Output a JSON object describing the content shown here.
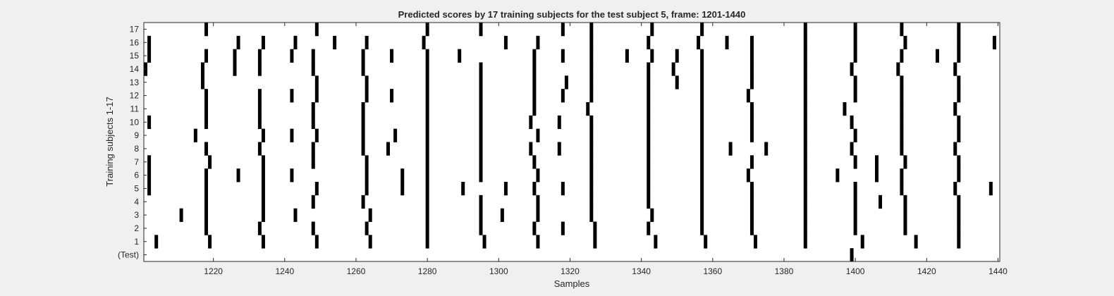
{
  "chart_data": {
    "type": "raster",
    "title": "Predicted scores by 17 training subjects for the test subject 5, frame: 1201-1440",
    "xlabel": "Samples",
    "ylabel": "Training subjects 1-17",
    "xlim": [
      1201,
      1440
    ],
    "xticks": [
      1220,
      1240,
      1260,
      1280,
      1300,
      1320,
      1340,
      1360,
      1380,
      1400,
      1420,
      1440
    ],
    "grid": false,
    "background_color": "#ffffff",
    "mark_color": "#000000",
    "rows": [
      {
        "label": "17",
        "x": [
          1218,
          1249,
          1280,
          1295,
          1318,
          1326,
          1343,
          1357,
          1386,
          1400,
          1413,
          1429
        ]
      },
      {
        "label": "16",
        "x": [
          1202,
          1227,
          1234,
          1243,
          1254,
          1263,
          1279,
          1302,
          1311,
          1326,
          1342,
          1356,
          1364,
          1371,
          1386,
          1400,
          1414,
          1429,
          1439
        ]
      },
      {
        "label": "15",
        "x": [
          1202,
          1218,
          1226,
          1233,
          1242,
          1248,
          1262,
          1270,
          1280,
          1289,
          1310,
          1318,
          1326,
          1336,
          1343,
          1350,
          1357,
          1371,
          1386,
          1400,
          1413,
          1423,
          1429
        ]
      },
      {
        "label": "14",
        "x": [
          1201,
          1217,
          1226,
          1233,
          1248,
          1262,
          1280,
          1295,
          1310,
          1326,
          1342,
          1349,
          1357,
          1371,
          1386,
          1399,
          1412,
          1428
        ]
      },
      {
        "label": "13",
        "x": [
          1217,
          1249,
          1263,
          1280,
          1295,
          1310,
          1319,
          1326,
          1342,
          1350,
          1357,
          1371,
          1386,
          1400,
          1413,
          1429
        ]
      },
      {
        "label": "12",
        "x": [
          1218,
          1233,
          1242,
          1249,
          1263,
          1270,
          1280,
          1295,
          1310,
          1318,
          1326,
          1342,
          1357,
          1370,
          1386,
          1400,
          1413,
          1429
        ]
      },
      {
        "label": "11",
        "x": [
          1218,
          1233,
          1248,
          1262,
          1280,
          1295,
          1310,
          1325,
          1342,
          1357,
          1371,
          1386,
          1397,
          1413,
          1428
        ]
      },
      {
        "label": "10",
        "x": [
          1202,
          1218,
          1233,
          1248,
          1262,
          1280,
          1295,
          1309,
          1317,
          1326,
          1342,
          1357,
          1371,
          1386,
          1399,
          1413,
          1429
        ]
      },
      {
        "label": "9",
        "x": [
          1215,
          1234,
          1242,
          1249,
          1262,
          1271,
          1280,
          1295,
          1311,
          1326,
          1342,
          1357,
          1371,
          1386,
          1400,
          1413,
          1429
        ]
      },
      {
        "label": "8",
        "x": [
          1218,
          1233,
          1248,
          1262,
          1269,
          1280,
          1295,
          1309,
          1317,
          1326,
          1342,
          1357,
          1365,
          1375,
          1386,
          1399,
          1413,
          1428
        ]
      },
      {
        "label": "7",
        "x": [
          1202,
          1219,
          1234,
          1248,
          1263,
          1280,
          1295,
          1310,
          1326,
          1342,
          1357,
          1371,
          1386,
          1400,
          1406,
          1414,
          1429
        ]
      },
      {
        "label": "6",
        "x": [
          1202,
          1218,
          1227,
          1234,
          1242,
          1263,
          1273,
          1280,
          1295,
          1311,
          1326,
          1342,
          1357,
          1370,
          1386,
          1395,
          1406,
          1413,
          1429
        ]
      },
      {
        "label": "5",
        "x": [
          1202,
          1218,
          1234,
          1249,
          1263,
          1273,
          1280,
          1290,
          1302,
          1310,
          1318,
          1326,
          1342,
          1357,
          1371,
          1386,
          1400,
          1413,
          1428,
          1438
        ]
      },
      {
        "label": "4",
        "x": [
          1218,
          1234,
          1248,
          1262,
          1280,
          1295,
          1311,
          1326,
          1342,
          1357,
          1371,
          1386,
          1400,
          1407,
          1414,
          1429
        ]
      },
      {
        "label": "3",
        "x": [
          1211,
          1218,
          1234,
          1243,
          1264,
          1280,
          1295,
          1301,
          1311,
          1326,
          1343,
          1357,
          1371,
          1386,
          1400,
          1414,
          1429
        ]
      },
      {
        "label": "2",
        "x": [
          1218,
          1233,
          1248,
          1263,
          1280,
          1295,
          1310,
          1318,
          1327,
          1342,
          1357,
          1371,
          1386,
          1400,
          1414,
          1429
        ]
      },
      {
        "label": "1",
        "x": [
          1204,
          1219,
          1234,
          1249,
          1264,
          1280,
          1296,
          1311,
          1327,
          1344,
          1358,
          1372,
          1386,
          1402,
          1417,
          1429
        ]
      },
      {
        "label": "(Test)",
        "x": [
          1399
        ]
      }
    ]
  }
}
